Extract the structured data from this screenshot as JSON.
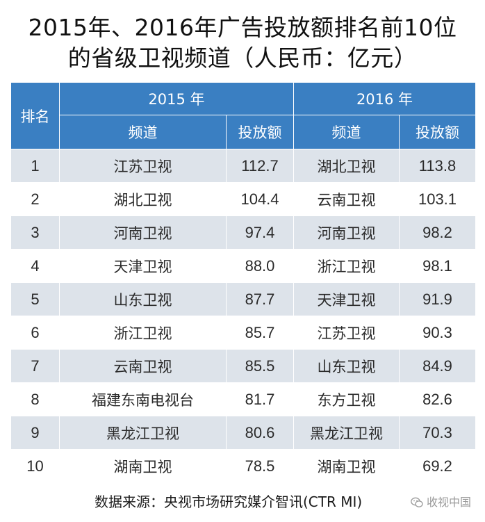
{
  "title": {
    "line1": "2015年、2016年广告投放额排名前10位",
    "line2": "的省级卫视频道（人民币：亿元）"
  },
  "header": {
    "rank": "排名",
    "year1": "2015 年",
    "year2": "2016 年",
    "channel": "频道",
    "amount": "投放额"
  },
  "chart_data": {
    "type": "table",
    "title": "2015年、2016年广告投放额排名前10位的省级卫视频道（人民币：亿元）",
    "columns": [
      "排名",
      "2015 年 频道",
      "2015 年 投放额",
      "2016 年 频道",
      "2016 年 投放额"
    ],
    "rows": [
      {
        "rank": "1",
        "ch2015": "江苏卫视",
        "v2015": "112.7",
        "ch2016": "湖北卫视",
        "v2016": "113.8"
      },
      {
        "rank": "2",
        "ch2015": "湖北卫视",
        "v2015": "104.4",
        "ch2016": "云南卫视",
        "v2016": "103.1"
      },
      {
        "rank": "3",
        "ch2015": "河南卫视",
        "v2015": "97.4",
        "ch2016": "河南卫视",
        "v2016": "98.2"
      },
      {
        "rank": "4",
        "ch2015": "天津卫视",
        "v2015": "88.0",
        "ch2016": "浙江卫视",
        "v2016": "98.1"
      },
      {
        "rank": "5",
        "ch2015": "山东卫视",
        "v2015": "87.7",
        "ch2016": "天津卫视",
        "v2016": "91.9"
      },
      {
        "rank": "6",
        "ch2015": "浙江卫视",
        "v2015": "85.7",
        "ch2016": "江苏卫视",
        "v2016": "90.3"
      },
      {
        "rank": "7",
        "ch2015": "云南卫视",
        "v2015": "85.5",
        "ch2016": "山东卫视",
        "v2016": "84.9"
      },
      {
        "rank": "8",
        "ch2015": "福建东南电视台",
        "v2015": "81.7",
        "ch2016": "东方卫视",
        "v2016": "82.6"
      },
      {
        "rank": "9",
        "ch2015": "黑龙江卫视",
        "v2015": "80.6",
        "ch2016": "黑龙江卫视",
        "v2016": "70.3"
      },
      {
        "rank": "10",
        "ch2015": "湖南卫视",
        "v2015": "78.5",
        "ch2016": "湖南卫视",
        "v2016": "69.2"
      }
    ]
  },
  "source": "数据来源：央视市场研究媒介智讯(CTR MI)",
  "watermark": "收视中国",
  "colors": {
    "header_bg": "#3a7fc2",
    "stripe": "#dde3ea"
  }
}
